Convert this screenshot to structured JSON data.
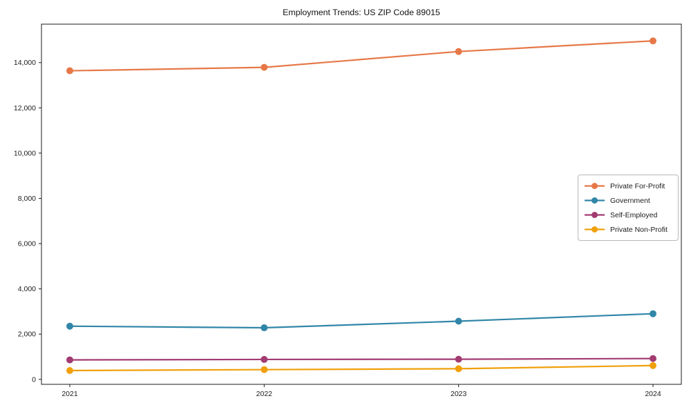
{
  "chart_data": {
    "type": "line",
    "title": "Employment Trends: US ZIP Code 89015",
    "x_tick_labels": [
      "2021",
      "2022",
      "2023",
      "2024"
    ],
    "series": [
      {
        "name": "Private For-Profit",
        "color": "#E67847",
        "values": [
          13640,
          13790,
          14490,
          14960
        ]
      },
      {
        "name": "Government",
        "color": "#3186A8",
        "values": [
          2350,
          2280,
          2570,
          2900
        ]
      },
      {
        "name": "Self-Employed",
        "color": "#A23B72",
        "values": [
          860,
          880,
          890,
          920
        ]
      },
      {
        "name": "Private Non-Profit",
        "color": "#F0A00A",
        "values": [
          390,
          430,
          470,
          610
        ]
      }
    ],
    "yticks": [
      0,
      2000,
      4000,
      6000,
      8000,
      10000,
      12000,
      14000
    ],
    "ytick_labels": [
      "0",
      "2,000",
      "4,000",
      "6,000",
      "8,000",
      "10,000",
      "12,000",
      "14,000"
    ],
    "ylim": [
      -220,
      15700
    ],
    "xlabel": "",
    "ylabel": "",
    "grid": false,
    "legend_position": "center-right",
    "marker": "circle",
    "line_width": 2.2,
    "marker_radius": 5,
    "axis_color": "#1a1a1a"
  }
}
